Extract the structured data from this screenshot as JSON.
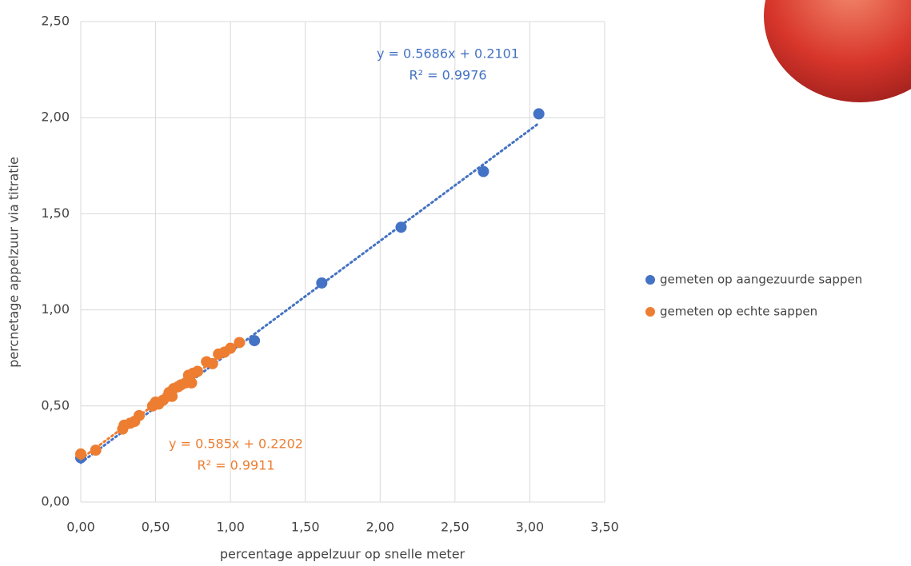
{
  "chart_data": {
    "type": "scatter",
    "x_label": "percentage appelzuur op snelle meter",
    "y_label": "percnetage appelzuur via titratie",
    "xlim": [
      0,
      3.5
    ],
    "ylim": [
      0,
      2.5
    ],
    "xticks": [
      {
        "value": 0,
        "label": "0,00"
      },
      {
        "value": 0.5,
        "label": "0,50"
      },
      {
        "value": 1,
        "label": "1,00"
      },
      {
        "value": 1.5,
        "label": "1,50"
      },
      {
        "value": 2,
        "label": "2,00"
      },
      {
        "value": 2.5,
        "label": "2,50"
      },
      {
        "value": 3,
        "label": "3,00"
      },
      {
        "value": 3.5,
        "label": "3,50"
      }
    ],
    "yticks": [
      {
        "value": 0,
        "label": "0,00"
      },
      {
        "value": 0.5,
        "label": "0,50"
      },
      {
        "value": 1,
        "label": "1,00"
      },
      {
        "value": 1.5,
        "label": "1,50"
      },
      {
        "value": 2,
        "label": "2,00"
      },
      {
        "value": 2.5,
        "label": "2,50"
      }
    ],
    "grid": true,
    "legend": "right",
    "series": [
      {
        "name": "gemeten op aangezuurde sappen",
        "color": "#4472c4",
        "trendline": "y = 0.5686x + 0.2101",
        "r_squared": "R² = 0.9976",
        "x": [
          0,
          1.16,
          1.61,
          2.14,
          2.69,
          3.06
        ],
        "values": [
          0.23,
          0.84,
          1.14,
          1.43,
          1.72,
          2.02
        ]
      },
      {
        "name": "gemeten op echte sappen",
        "color": "#ed7d31",
        "trendline": "y = 0.585x + 0.2202",
        "r_squared": "R² = 0.9911",
        "x": [
          0,
          0.1,
          0.28,
          0.29,
          0.33,
          0.36,
          0.39,
          0.48,
          0.5,
          0.52,
          0.55,
          0.58,
          0.59,
          0.61,
          0.62,
          0.65,
          0.67,
          0.7,
          0.72,
          0.74,
          0.75,
          0.78,
          0.84,
          0.88,
          0.92,
          0.96,
          1.0,
          1.06
        ],
        "values": [
          0.25,
          0.27,
          0.38,
          0.4,
          0.41,
          0.42,
          0.45,
          0.5,
          0.52,
          0.51,
          0.53,
          0.55,
          0.57,
          0.55,
          0.59,
          0.6,
          0.61,
          0.62,
          0.66,
          0.62,
          0.67,
          0.68,
          0.73,
          0.72,
          0.77,
          0.78,
          0.8,
          0.83
        ]
      }
    ]
  }
}
